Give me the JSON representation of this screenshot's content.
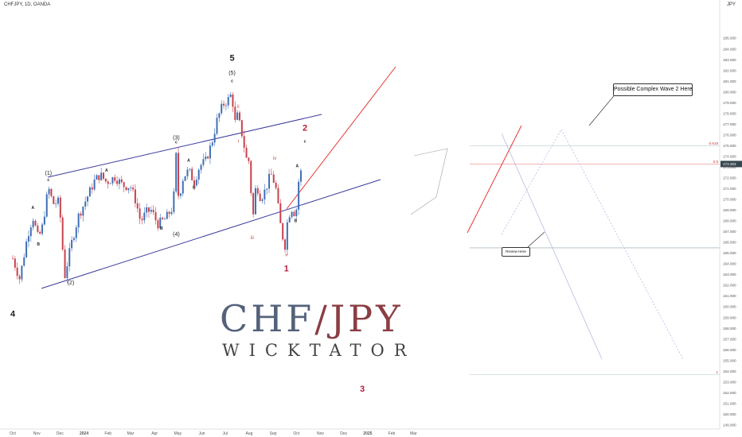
{
  "header": {
    "symbol": "CHFJPY, 1D, OANDA",
    "currency": "JPY"
  },
  "callouts": {
    "complex_wave": "Possible Complex Wave 2 Here",
    "review": "Review Here"
  },
  "watermark": {
    "pair_a": "CHF",
    "sep": "/",
    "pair_b": "JPY",
    "brand": "WICKTATOR"
  },
  "colors": {
    "up_candle": "#3f6fb5",
    "down_candle": "#c8424c",
    "channel": "#3b3b9e",
    "trendline": "#e53935",
    "wave_red": "#b71c3c",
    "fib_line": "#f4a8a8",
    "projection": "#9fa8da"
  },
  "chart_data": {
    "type": "candlestick",
    "ylim": [
      148,
      186
    ],
    "y_ticks": [
      "149.000",
      "150.000",
      "151.000",
      "152.000",
      "153.000",
      "154.000",
      "155.000",
      "156.000",
      "157.000",
      "158.000",
      "159.000",
      "160.000",
      "161.000",
      "162.000",
      "163.000",
      "164.000",
      "165.000",
      "166.000",
      "167.000",
      "168.000",
      "169.000",
      "170.000",
      "171.000",
      "172.000",
      "173.000",
      "174.000",
      "175.000",
      "176.000",
      "177.000",
      "178.000",
      "179.000",
      "180.000",
      "181.000",
      "182.000",
      "183.000",
      "184.000",
      "185.000"
    ],
    "x_ticks": [
      "Oct",
      "Nov",
      "Dec",
      "2024",
      "Feb",
      "Mar",
      "Apr",
      "May",
      "Jun",
      "Jul",
      "Aug",
      "Sep",
      "Oct",
      "Nov",
      "Dec",
      "2025",
      "Feb",
      "Mar"
    ],
    "price_path": [
      [
        "2023-10-01",
        164.5
      ],
      [
        "2023-10-10",
        162.6
      ],
      [
        "2023-10-20",
        166.6
      ],
      [
        "2023-10-27",
        168.4
      ],
      [
        "2023-11-03",
        166.3
      ],
      [
        "2023-11-08",
        167.4
      ],
      [
        "2023-11-16",
        171.1
      ],
      [
        "2023-11-22",
        169.6
      ],
      [
        "2023-11-30",
        169.8
      ],
      [
        "2023-12-07",
        162.8
      ],
      [
        "2023-12-15",
        165.7
      ],
      [
        "2023-12-25",
        168.5
      ],
      [
        "2024-01-05",
        170.2
      ],
      [
        "2024-01-15",
        171.8
      ],
      [
        "2024-01-22",
        172.3
      ],
      [
        "2024-01-30",
        171.6
      ],
      [
        "2024-02-10",
        172.1
      ],
      [
        "2024-02-20",
        171.3
      ],
      [
        "2024-03-01",
        171.2
      ],
      [
        "2024-03-08",
        169.8
      ],
      [
        "2024-03-14",
        167.9
      ],
      [
        "2024-03-21",
        168.8
      ],
      [
        "2024-03-28",
        169.0
      ],
      [
        "2024-04-05",
        167.7
      ],
      [
        "2024-04-15",
        168.2
      ],
      [
        "2024-04-25",
        169.3
      ],
      [
        "2024-04-29",
        174.3
      ],
      [
        "2024-05-02",
        170.0
      ],
      [
        "2024-05-08",
        172.1
      ],
      [
        "2024-05-15",
        172.7
      ],
      [
        "2024-05-22",
        171.6
      ],
      [
        "2024-05-29",
        173.1
      ],
      [
        "2024-06-06",
        173.6
      ],
      [
        "2024-06-14",
        175.3
      ],
      [
        "2024-06-21",
        177.5
      ],
      [
        "2024-06-28",
        178.8
      ],
      [
        "2024-07-05",
        179.3
      ],
      [
        "2024-07-10",
        179.9
      ],
      [
        "2024-07-13",
        177.0
      ],
      [
        "2024-07-17",
        177.8
      ],
      [
        "2024-07-22",
        176.4
      ],
      [
        "2024-07-29",
        173.6
      ],
      [
        "2024-08-02",
        173.6
      ],
      [
        "2024-08-05",
        167.5
      ],
      [
        "2024-08-10",
        171.5
      ],
      [
        "2024-08-16",
        170.1
      ],
      [
        "2024-08-22",
        170.9
      ],
      [
        "2024-08-29",
        172.4
      ],
      [
        "2024-09-04",
        171.3
      ],
      [
        "2024-09-10",
        167.8
      ],
      [
        "2024-09-16",
        165.5
      ],
      [
        "2024-09-20",
        168.4
      ],
      [
        "2024-09-26",
        169.3
      ],
      [
        "2024-09-30",
        168.3
      ],
      [
        "2024-10-04",
        171.8
      ],
      [
        "2024-10-07",
        172.6
      ]
    ],
    "last_price": "173.303",
    "levels": [
      {
        "label": "0.5",
        "value": 173.3
      },
      {
        "label": "0.618",
        "value": 175.0
      },
      {
        "label": "1",
        "value": 153.7
      },
      {
        "label": "",
        "value": 165.5
      }
    ],
    "wave_labels": [
      {
        "text": "5",
        "x": "2024-07-10",
        "y": 182.9
      },
      {
        "text": "(5)",
        "x": "2024-07-10",
        "y": 181.6
      },
      {
        "text": "c",
        "x": "2024-07-10",
        "y": 180.9
      },
      {
        "text": "4",
        "x": "2023-10-01",
        "y": 159.1
      },
      {
        "text": "(1)",
        "x": "2023-11-16",
        "y": 172.3
      },
      {
        "text": "c",
        "x": "2023-11-16",
        "y": 171.7
      },
      {
        "text": "(2)",
        "x": "2023-12-15",
        "y": 162.1
      },
      {
        "text": "(3)",
        "x": "2024-04-29",
        "y": 175.6
      },
      {
        "text": "c",
        "x": "2024-04-29",
        "y": 175.2
      },
      {
        "text": "(4)",
        "x": "2024-04-29",
        "y": 166.6
      },
      {
        "text": "A",
        "x": "2023-10-27",
        "y": 169.1
      },
      {
        "text": "B",
        "x": "2023-11-03",
        "y": 165.7
      },
      {
        "text": "A",
        "x": "2024-01-30",
        "y": 172.6
      },
      {
        "text": "B",
        "x": "2024-04-10",
        "y": 167.2
      },
      {
        "text": "A",
        "x": "2024-05-15",
        "y": 173.5
      },
      {
        "text": "B",
        "x": "2024-05-22",
        "y": 171.0
      },
      {
        "text": "ii",
        "x": "2024-07-18",
        "y": 178.5
      },
      {
        "text": "i",
        "x": "2024-07-18",
        "y": 175.3
      },
      {
        "text": "iii",
        "x": "2024-08-05",
        "y": 166.3
      },
      {
        "text": "iv",
        "x": "2024-09-03",
        "y": 173.7
      },
      {
        "text": "v",
        "x": "2024-09-18",
        "y": 164.7
      },
      {
        "text": "1",
        "x": "2024-09-18",
        "y": 163.3
      },
      {
        "text": "2",
        "x": "2024-10-12",
        "y": 176.4
      },
      {
        "text": "c",
        "x": "2024-10-12",
        "y": 175.3
      },
      {
        "text": "A",
        "x": "2024-10-02",
        "y": 173.0
      },
      {
        "text": "B",
        "x": "2024-09-30",
        "y": 167.9
      },
      {
        "text": "3",
        "x": "2024-12-25",
        "y": 152.1
      }
    ]
  }
}
